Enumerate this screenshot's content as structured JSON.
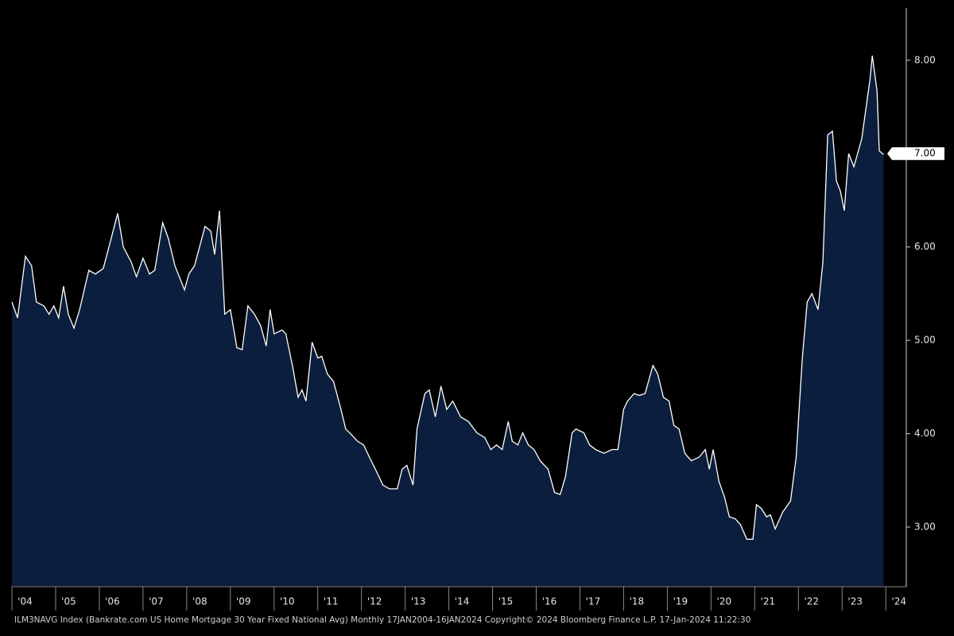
{
  "chart_data": {
    "type": "area",
    "x": [
      2004.0,
      2004.13,
      2004.31,
      2004.45,
      2004.56,
      2004.73,
      2004.85,
      2004.96,
      2005.07,
      2005.18,
      2005.29,
      2005.42,
      2005.55,
      2005.76,
      2005.91,
      2006.09,
      2006.27,
      2006.42,
      2006.55,
      2006.73,
      2006.85,
      2007.0,
      2007.15,
      2007.27,
      2007.45,
      2007.58,
      2007.73,
      2007.84,
      2007.95,
      2008.05,
      2008.18,
      2008.42,
      2008.55,
      2008.64,
      2008.75,
      2008.87,
      2009.0,
      2009.15,
      2009.27,
      2009.4,
      2009.55,
      2009.69,
      2009.82,
      2009.91,
      2010.0,
      2010.18,
      2010.27,
      2010.42,
      2010.55,
      2010.64,
      2010.73,
      2010.87,
      2011.0,
      2011.09,
      2011.22,
      2011.36,
      2011.51,
      2011.64,
      2011.73,
      2011.91,
      2012.05,
      2012.18,
      2012.36,
      2012.49,
      2012.64,
      2012.82,
      2012.93,
      2013.04,
      2013.18,
      2013.27,
      2013.45,
      2013.55,
      2013.69,
      2013.82,
      2013.95,
      2014.09,
      2014.27,
      2014.45,
      2014.64,
      2014.82,
      2014.96,
      2015.09,
      2015.22,
      2015.36,
      2015.45,
      2015.58,
      2015.69,
      2015.82,
      2015.95,
      2016.09,
      2016.27,
      2016.42,
      2016.55,
      2016.67,
      2016.82,
      2016.91,
      2017.09,
      2017.22,
      2017.36,
      2017.55,
      2017.73,
      2017.87,
      2018.0,
      2018.09,
      2018.24,
      2018.36,
      2018.49,
      2018.67,
      2018.78,
      2018.91,
      2019.04,
      2019.15,
      2019.27,
      2019.4,
      2019.55,
      2019.73,
      2019.87,
      2019.96,
      2020.05,
      2020.18,
      2020.31,
      2020.42,
      2020.55,
      2020.67,
      2020.82,
      2020.96,
      2021.04,
      2021.15,
      2021.27,
      2021.36,
      2021.47,
      2021.64,
      2021.82,
      2021.95,
      2022.09,
      2022.2,
      2022.31,
      2022.45,
      2022.56,
      2022.67,
      2022.78,
      2022.87,
      2022.96,
      2023.05,
      2023.15,
      2023.27,
      2023.45,
      2023.64,
      2023.69,
      2023.8,
      2023.85,
      2023.95
    ],
    "values": [
      5.41,
      5.24,
      5.9,
      5.8,
      5.41,
      5.37,
      5.28,
      5.37,
      5.24,
      5.58,
      5.28,
      5.13,
      5.33,
      5.75,
      5.71,
      5.77,
      6.09,
      6.36,
      6.0,
      5.84,
      5.68,
      5.88,
      5.71,
      5.75,
      6.26,
      6.09,
      5.8,
      5.67,
      5.54,
      5.71,
      5.8,
      6.22,
      6.17,
      5.92,
      6.39,
      5.28,
      5.33,
      4.92,
      4.9,
      5.37,
      5.28,
      5.16,
      4.94,
      5.33,
      5.07,
      5.11,
      5.07,
      4.73,
      4.39,
      4.47,
      4.35,
      4.98,
      4.81,
      4.83,
      4.64,
      4.56,
      4.3,
      4.05,
      4.01,
      3.92,
      3.88,
      3.75,
      3.58,
      3.45,
      3.41,
      3.41,
      3.62,
      3.66,
      3.45,
      4.05,
      4.43,
      4.47,
      4.18,
      4.51,
      4.26,
      4.35,
      4.18,
      4.13,
      4.01,
      3.96,
      3.83,
      3.88,
      3.83,
      4.13,
      3.92,
      3.88,
      4.01,
      3.88,
      3.83,
      3.71,
      3.62,
      3.37,
      3.35,
      3.54,
      4.01,
      4.05,
      4.01,
      3.88,
      3.83,
      3.79,
      3.83,
      3.83,
      4.26,
      4.35,
      4.43,
      4.41,
      4.43,
      4.73,
      4.64,
      4.39,
      4.35,
      4.09,
      4.05,
      3.79,
      3.71,
      3.75,
      3.83,
      3.62,
      3.83,
      3.49,
      3.32,
      3.11,
      3.09,
      3.03,
      2.87,
      2.87,
      3.24,
      3.2,
      3.11,
      3.13,
      2.98,
      3.16,
      3.28,
      3.75,
      4.81,
      5.41,
      5.5,
      5.33,
      5.84,
      7.2,
      7.24,
      6.71,
      6.6,
      6.39,
      7.0,
      6.86,
      7.16,
      7.8,
      8.05,
      7.67,
      7.03,
      6.99
    ],
    "color": "#ffffff",
    "fill": "#0b1e3d",
    "xlim": [
      2004,
      2023.96
    ],
    "xticks": [
      {
        "value": 2004,
        "label": "'04"
      },
      {
        "value": 2005,
        "label": "'05"
      },
      {
        "value": 2006,
        "label": "'06"
      },
      {
        "value": 2007,
        "label": "'07"
      },
      {
        "value": 2008,
        "label": "'08"
      },
      {
        "value": 2009,
        "label": "'09"
      },
      {
        "value": 2010,
        "label": "'10"
      },
      {
        "value": 2011,
        "label": "'11"
      },
      {
        "value": 2012,
        "label": "'12"
      },
      {
        "value": 2013,
        "label": "'13"
      },
      {
        "value": 2014,
        "label": "'14"
      },
      {
        "value": 2015,
        "label": "'15"
      },
      {
        "value": 2016,
        "label": "'16"
      },
      {
        "value": 2017,
        "label": "'17"
      },
      {
        "value": 2018,
        "label": "'18"
      },
      {
        "value": 2019,
        "label": "'19"
      },
      {
        "value": 2020,
        "label": "'20"
      },
      {
        "value": 2021,
        "label": "'21"
      },
      {
        "value": 2022,
        "label": "'22"
      },
      {
        "value": 2023,
        "label": "'23"
      },
      {
        "value": 2024,
        "label": "'24"
      }
    ],
    "ylim": [
      2.37,
      8.56
    ],
    "yticks": [
      {
        "value": 3,
        "label": "3.00"
      },
      {
        "value": 4,
        "label": "4.00"
      },
      {
        "value": 5,
        "label": "5.00"
      },
      {
        "value": 6,
        "label": "6.00"
      },
      {
        "value": 7,
        "label": "7.00"
      },
      {
        "value": 8,
        "label": "8.00"
      }
    ],
    "annotations": [
      {
        "value": 7.0,
        "label": "7.00"
      }
    ],
    "source": "ILM3NAVG Index (Bankrate.com US Home Mortgage 30 Year Fixed National Avg)  Monthly 17JAN2004-16JAN2024   Copyright© 2024 Bloomberg Finance L.P.   17-Jan-2024 11:22:30"
  }
}
